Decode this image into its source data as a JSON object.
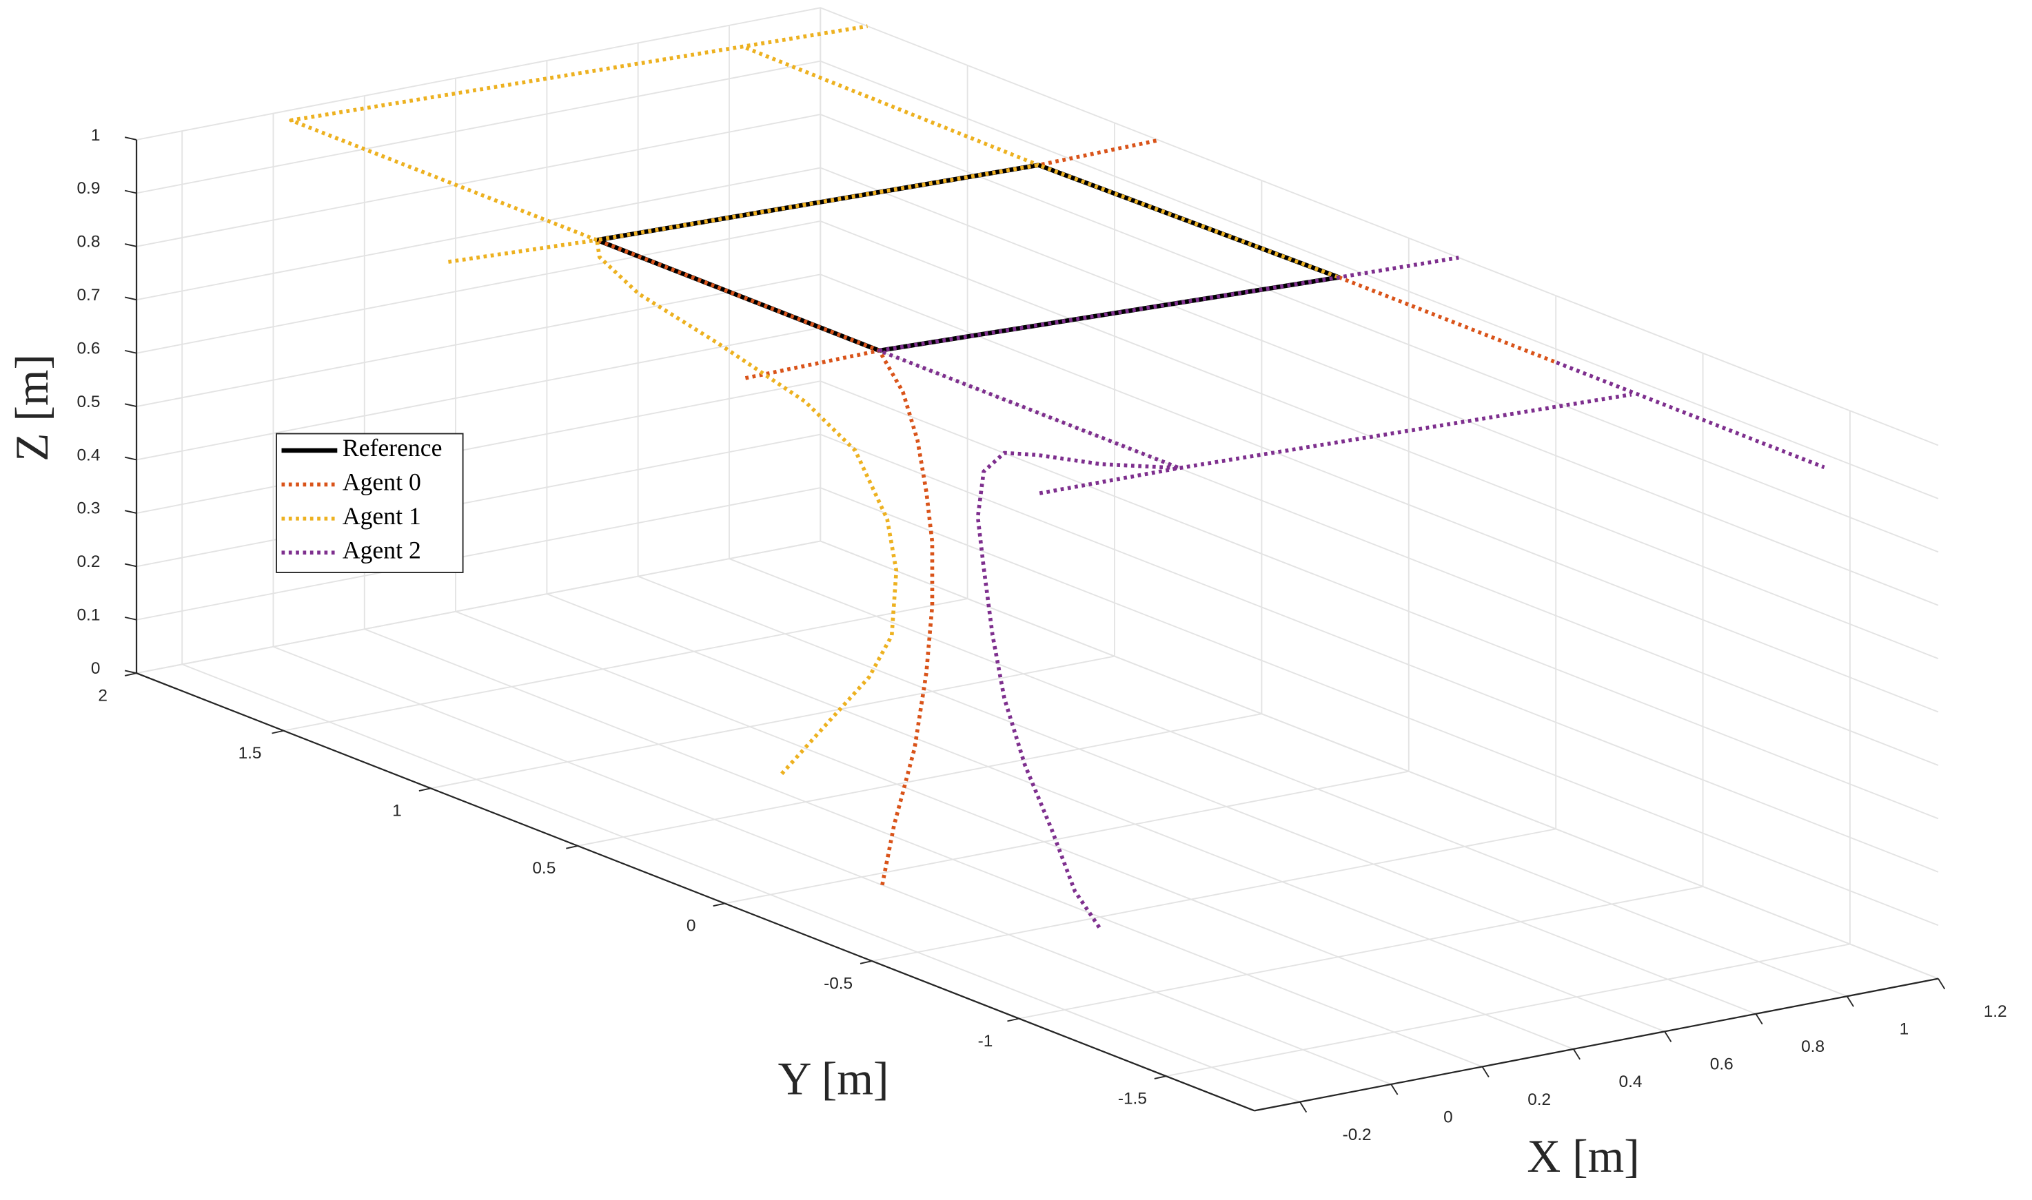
{
  "chart_data": {
    "type": "line3d",
    "xlabel": "X [m]",
    "ylabel": "Y [m]",
    "zlabel": "Z [m]",
    "xlim": [
      -0.3,
      1.2
    ],
    "ylim": [
      -1.8,
      2
    ],
    "zlim": [
      0,
      1
    ],
    "xticks": [
      -0.2,
      0,
      0.2,
      0.4,
      0.6,
      0.8,
      1,
      1.2
    ],
    "yticks": [
      -1.5,
      -1,
      -0.5,
      0,
      0.5,
      1,
      1.5,
      2
    ],
    "zticks": [
      0,
      0.1,
      0.2,
      0.3,
      0.4,
      0.5,
      0.6,
      0.7,
      0.8,
      0.9,
      1
    ],
    "grid": true,
    "legend": "west",
    "series": [
      {
        "name": "Reference",
        "color": "#000000",
        "linestyle": "solid",
        "x": [
          0,
          0,
          0.93,
          0.95,
          0
        ],
        "y": [
          -0.06,
          0.9,
          0.84,
          -0.15,
          -0.06
        ],
        "z": [
          1,
          1,
          1,
          1,
          1
        ]
      },
      {
        "name": "Agent 0",
        "color": "#d95319",
        "linestyle": "dotted",
        "x": [
          0,
          0,
          0,
          0,
          0,
          0,
          0,
          0,
          0,
          0,
          0,
          0.93,
          1.2,
          null,
          -0.3,
          0,
          null,
          0.95,
          0.95
        ],
        "y": [
          -0.07,
          -0.11,
          -0.18,
          -0.22,
          -0.24,
          -0.24,
          -0.22,
          -0.19,
          -0.14,
          -0.06,
          0.9,
          0.84,
          0.85,
          null,
          -0.07,
          -0.06,
          null,
          -0.15,
          -0.89
        ],
        "z": [
          0,
          0.12,
          0.28,
          0.43,
          0.56,
          0.68,
          0.77,
          0.86,
          0.94,
          1,
          1,
          1,
          1,
          null,
          1,
          1,
          null,
          1,
          1
        ]
      },
      {
        "name": "Agent 1",
        "color": "#edb120",
        "linestyle": "dotted",
        "x": [
          0.27,
          0.41,
          0.5,
          0.55,
          0.56,
          0.54,
          0.47,
          0.36,
          0.19,
          0.04,
          -0.02,
          0,
          0.93,
          0.95,
          null,
          -0.3,
          0,
          null,
          0,
          0,
          1.2,
          null,
          0.94,
          0.93
        ],
        "y": [
          0.69,
          0.75,
          0.75,
          0.75,
          0.75,
          0.75,
          0.75,
          0.75,
          0.78,
          0.82,
          0.86,
          0.9,
          0.84,
          -0.15,
          null,
          0.94,
          0.9,
          null,
          0.9,
          1.94,
          1.84,
          null,
          1.85,
          0.84
        ],
        "z": [
          0,
          0.06,
          0.13,
          0.2,
          0.32,
          0.42,
          0.56,
          0.67,
          0.8,
          0.91,
          0.98,
          1,
          1,
          1,
          null,
          1,
          1,
          null,
          1,
          1,
          1,
          null,
          1,
          1
        ]
      },
      {
        "name": "Agent 2",
        "color": "#7e2f8e",
        "linestyle": "dotted",
        "x": [
          0.16,
          0.1,
          0.1,
          0.1,
          0.1,
          0.1,
          0.1,
          0.1,
          0.1,
          0.1,
          0.1,
          0.1,
          0,
          0,
          0.95,
          1.2,
          null,
          -0.3,
          0,
          0.94,
          null,
          0.95,
          0.95
        ],
        "y": [
          -0.56,
          -0.57,
          -0.49,
          -0.4,
          -0.33,
          -0.29,
          -0.26,
          -0.24,
          -0.26,
          -0.33,
          -0.44,
          -0.66,
          -1.08,
          -0.06,
          -0.15,
          -0.17,
          null,
          -1.07,
          -1.08,
          -1.16,
          null,
          -0.89,
          -1.8
        ],
        "z": [
          0,
          0.08,
          0.18,
          0.28,
          0.39,
          0.5,
          0.62,
          0.71,
          0.8,
          0.85,
          0.87,
          0.9,
          1,
          1,
          1,
          1,
          null,
          1,
          1,
          1,
          null,
          1,
          1
        ]
      }
    ]
  }
}
